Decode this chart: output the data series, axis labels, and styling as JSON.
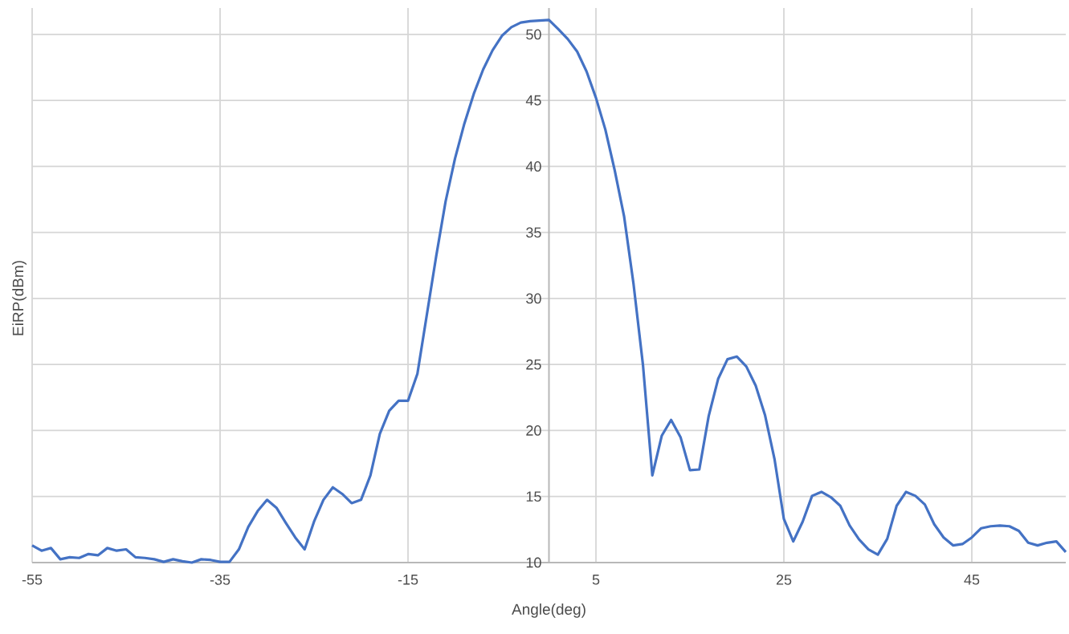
{
  "chart_data": {
    "type": "line",
    "xlabel": "Angle(deg)",
    "ylabel": "EiRP(dBm)",
    "x": [
      -55,
      -54,
      -53,
      -52,
      -51,
      -50,
      -49,
      -48,
      -47,
      -46,
      -45,
      -44,
      -43,
      -42,
      -41,
      -40,
      -39,
      -38,
      -37,
      -36,
      -35,
      -34,
      -33,
      -32,
      -31,
      -30,
      -29,
      -28,
      -27,
      -26,
      -25,
      -24,
      -23,
      -22,
      -21,
      -20,
      -19,
      -18,
      -17,
      -16,
      -15,
      -14,
      -13,
      -12,
      -11,
      -10,
      -9,
      -8,
      -7,
      -6,
      -5,
      -4,
      -3,
      -2,
      -1,
      0,
      1,
      2,
      3,
      4,
      5,
      6,
      7,
      8,
      9,
      10,
      11,
      12,
      13,
      14,
      15,
      16,
      17,
      18,
      19,
      20,
      21,
      22,
      23,
      24,
      25,
      26,
      27,
      28,
      29,
      30,
      31,
      32,
      33,
      34,
      35,
      36,
      37,
      38,
      39,
      40,
      41,
      42,
      43,
      44,
      45,
      46,
      47,
      48,
      49,
      50,
      51,
      52,
      53,
      54,
      55
    ],
    "series": [
      {
        "color": "#4472c4",
        "values": [
          11.3,
          10.9,
          11.1,
          10.25,
          10.4,
          10.35,
          10.65,
          10.55,
          11.1,
          10.9,
          11.0,
          10.4,
          10.35,
          10.25,
          10.05,
          10.25,
          10.1,
          10.0,
          10.25,
          10.2,
          10.05,
          10.05,
          11.0,
          12.7,
          13.9,
          14.75,
          14.15,
          13.0,
          11.9,
          11.0,
          13.1,
          14.75,
          15.7,
          15.2,
          14.5,
          14.75,
          16.6,
          19.75,
          21.5,
          22.25,
          22.25,
          24.3,
          28.75,
          33.2,
          37.35,
          40.6,
          43.25,
          45.5,
          47.35,
          48.8,
          49.9,
          50.55,
          50.9,
          51.0,
          51.05,
          51.1,
          50.4,
          49.65,
          48.7,
          47.2,
          45.2,
          42.8,
          39.7,
          36.2,
          31.1,
          25.0,
          16.6,
          19.6,
          20.8,
          19.5,
          17.0,
          17.05,
          21.1,
          23.9,
          25.4,
          25.6,
          24.85,
          23.4,
          21.15,
          17.85,
          13.3,
          11.6,
          13.1,
          15.05,
          15.35,
          14.95,
          14.3,
          12.8,
          11.75,
          11.0,
          10.6,
          11.8,
          14.3,
          15.35,
          15.05,
          14.4,
          12.9,
          11.9,
          11.3,
          11.4,
          11.9,
          12.6,
          12.75,
          12.8,
          12.75,
          12.4,
          11.5,
          11.3,
          11.5,
          11.6,
          10.8
        ]
      }
    ],
    "xlim": [
      -55,
      55
    ],
    "ylim": [
      10,
      52
    ],
    "xticks": [
      -55,
      -35,
      -15,
      5,
      25,
      45
    ],
    "yticks": [
      10,
      15,
      20,
      25,
      30,
      35,
      40,
      45,
      50
    ],
    "grid": true,
    "legend": false,
    "marker": "none",
    "line_style": "solid"
  }
}
